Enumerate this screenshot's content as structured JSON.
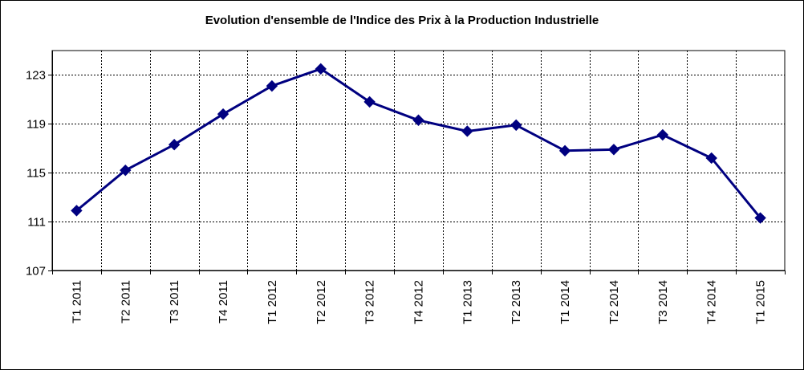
{
  "chart_data": {
    "type": "line",
    "title": "Evolution d'ensemble de l'Indice des Prix à la  Production Industrielle",
    "xlabel": "",
    "ylabel": "",
    "categories": [
      "T1 2011",
      "T2 2011",
      "T3 2011",
      "T4 2011",
      "T1 2012",
      "T2 2012",
      "T3 2012",
      "T4 2012",
      "T1 2013",
      "T2 2013",
      "T1 2014",
      "T2 2014",
      "T3 2014",
      "T4 2014",
      "T1 2015"
    ],
    "series": [
      {
        "values": [
          111.9,
          115.2,
          117.3,
          119.8,
          122.1,
          123.5,
          120.8,
          119.3,
          118.4,
          118.9,
          116.8,
          116.9,
          118.1,
          116.2,
          111.3
        ]
      }
    ],
    "ylim": [
      107,
      125
    ],
    "yticks": [
      107,
      111,
      115,
      119,
      123
    ],
    "grid": true,
    "line_color": "#000080",
    "grid_color": "#000000",
    "plot_background": "#ffffff"
  }
}
